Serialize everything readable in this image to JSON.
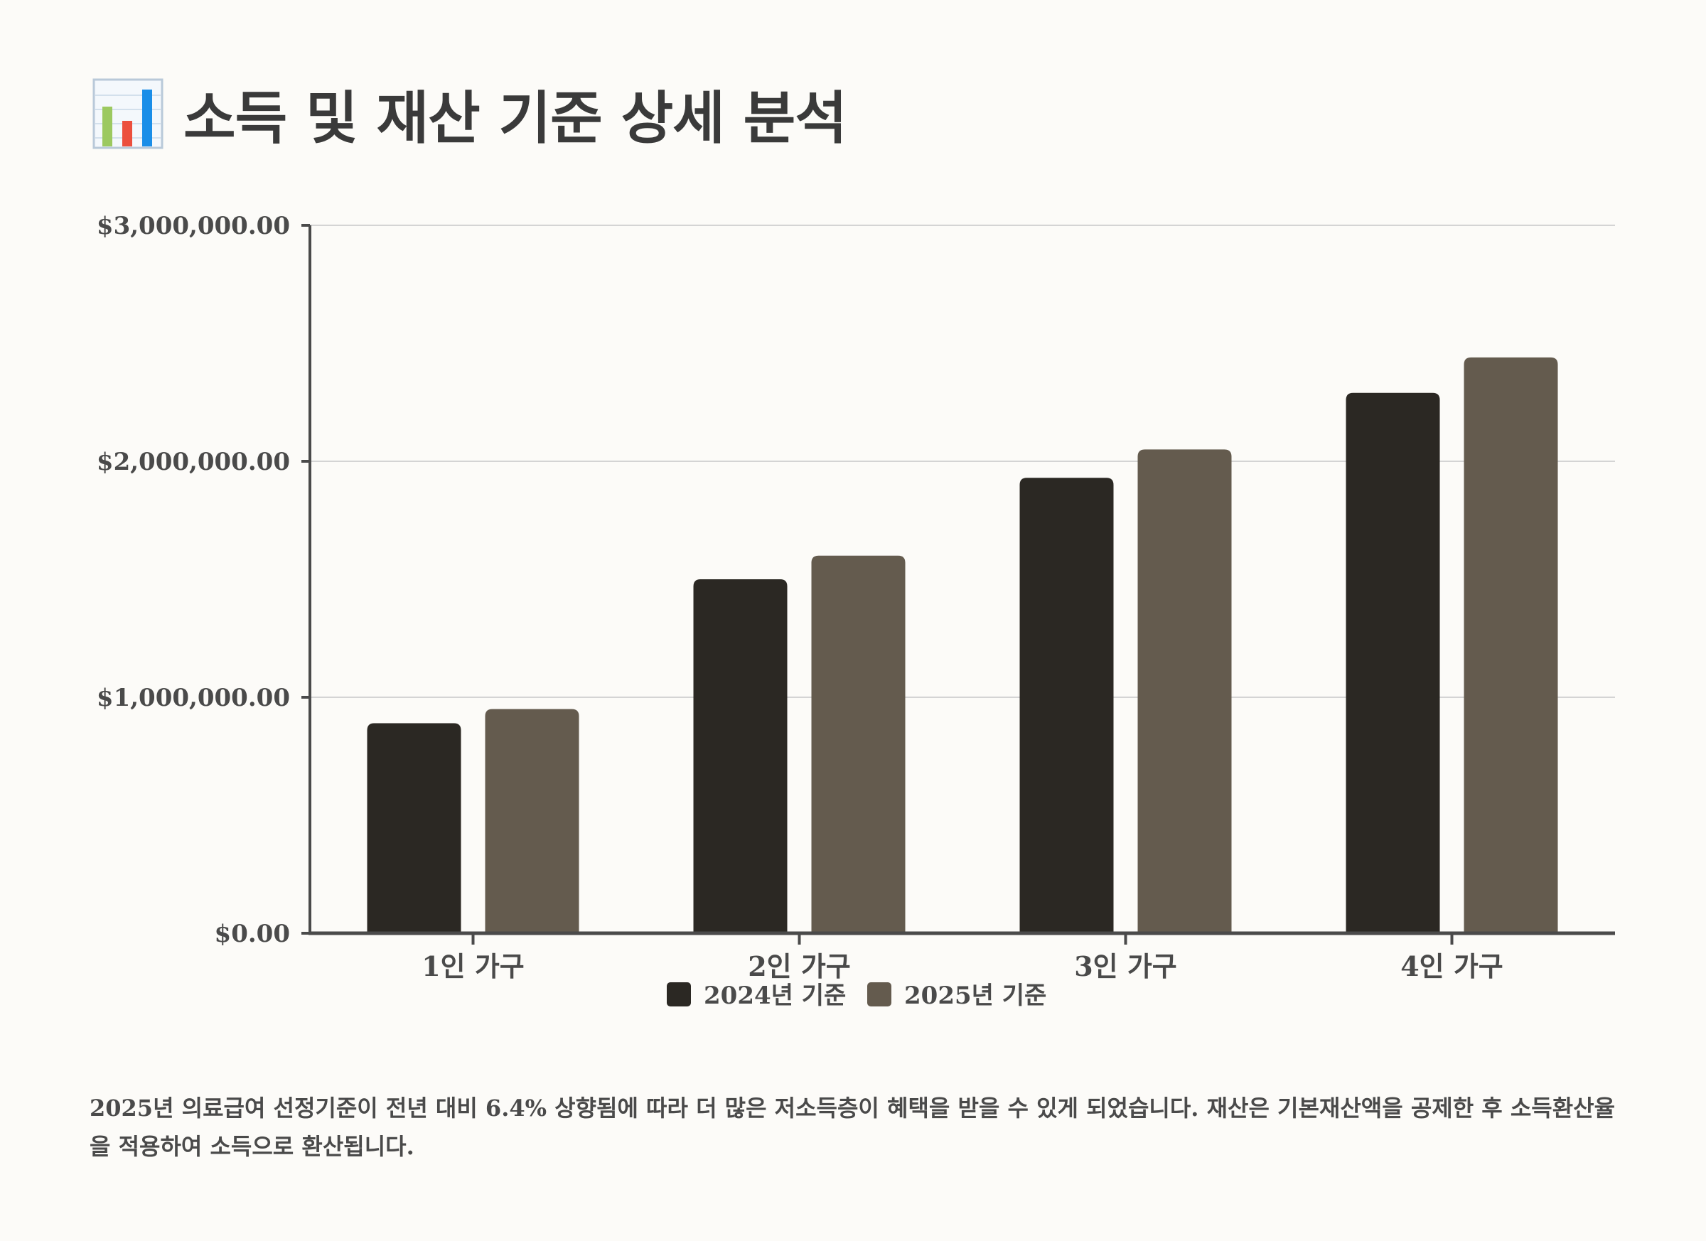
{
  "page": {
    "title_icon": "bar-chart-icon",
    "title": "소득 및 재산 기준 상세 분석",
    "description": "2025년 의료급여 선정기준이 전년 대비 6.4% 상향됨에 따라 더 많은 저소득층이 혜택을 받을 수 있게 되었습니다. 재산은 기본재산액을 공제한 후 소득환산율을 적용하여 소득으로 환산됩니다."
  },
  "colors": {
    "background": "#fcfbf8",
    "series_2024": "#2b2823",
    "series_2025": "#645b4e",
    "grid": "#d4d4d4",
    "axis": "#4a4a4a",
    "text": "#3a3a3a"
  },
  "chart_data": {
    "type": "bar",
    "categories": [
      "1인 가구",
      "2인 가구",
      "3인 가구",
      "4인 가구"
    ],
    "series": [
      {
        "name": "2024년 기준",
        "values": [
          890000,
          1500000,
          1930000,
          2290000
        ]
      },
      {
        "name": "2025년 기준",
        "values": [
          950000,
          1600000,
          2050000,
          2440000
        ]
      }
    ],
    "ylim": [
      0,
      3000000
    ],
    "yticks": [
      0,
      1000000,
      2000000,
      3000000
    ],
    "ytick_labels": [
      "$0.00",
      "$1,000,000.00",
      "$2,000,000.00",
      "$3,000,000.00"
    ],
    "grid": true,
    "legend_position": "bottom-center",
    "xlabel": "",
    "ylabel": ""
  }
}
